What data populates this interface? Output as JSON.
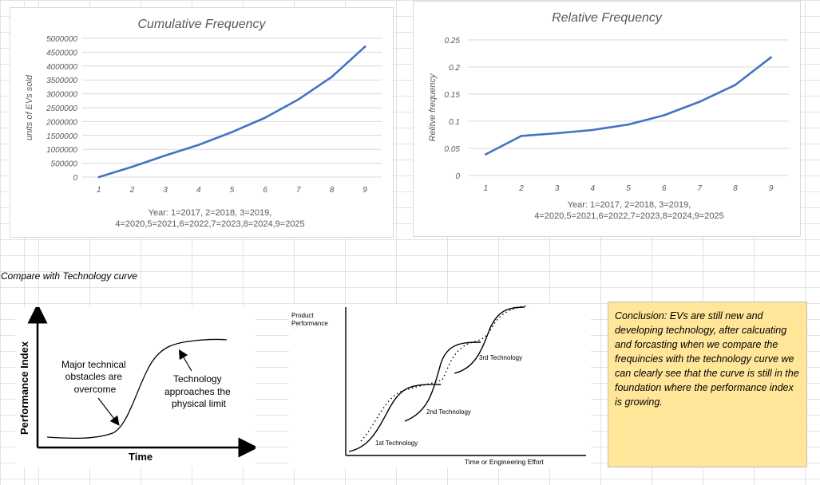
{
  "chart_data": [
    {
      "type": "line",
      "title": "Cumulative  Frequency",
      "ylabel": "units of EVs sold",
      "xlabel_lines": [
        "Year: 1=2017, 2=2018, 3=2019,",
        "4=2020,5=2021,6=2022,7=2023,8=2024,9=2025"
      ],
      "x": [
        1,
        2,
        3,
        4,
        5,
        6,
        7,
        8,
        9
      ],
      "values": [
        0,
        370000,
        780000,
        1160000,
        1620000,
        2140000,
        2800000,
        3610000,
        4700000
      ],
      "ylim": [
        0,
        5000000
      ],
      "yticks": [
        0,
        500000,
        1000000,
        1500000,
        2000000,
        2500000,
        3000000,
        3500000,
        4000000,
        4500000,
        5000000
      ],
      "color": "#4472c4",
      "grid": true
    },
    {
      "type": "line",
      "title": "Relative Frequency",
      "ylabel": "Relitve frequency",
      "xlabel_lines": [
        "Year: 1=2017, 2=2018, 3=2019,",
        "4=2020,5=2021,6=2022,7=2023,8=2024,9=2025"
      ],
      "x": [
        1,
        2,
        3,
        4,
        5,
        6,
        7,
        8,
        9
      ],
      "values": [
        0.039,
        0.073,
        0.078,
        0.084,
        0.094,
        0.111,
        0.136,
        0.167,
        0.218
      ],
      "ylim": [
        0,
        0.25
      ],
      "yticks": [
        0,
        0.05,
        0.1,
        0.15,
        0.2,
        0.25
      ],
      "ytick_labels": [
        "0",
        "0.05",
        "0.1",
        "0.15",
        "0.2",
        "0.25"
      ],
      "color": "#4472c4",
      "grid": true
    }
  ],
  "section_label": "Compare with Technology curve",
  "s_curve": {
    "ylabel": "Performance Index",
    "xlabel": "Time",
    "note_left": [
      "Major technical",
      "obstacles are",
      "overcome"
    ],
    "note_right": [
      "Technology",
      "approaches the",
      "physical limit"
    ]
  },
  "multi_curve": {
    "ylabel_lines": [
      "Product",
      "Performance"
    ],
    "xlabel": "Time or Engineering Effort",
    "labels": [
      "1st Technology",
      "2nd Technology",
      "3rd Technology"
    ]
  },
  "conclusion": "Conclusion: EVs are still new and developing technology, after calcuating and forcasting when we compare the frequincies with the technology curve we can clearly see that the curve is still in the foundation where the performance index is growing."
}
